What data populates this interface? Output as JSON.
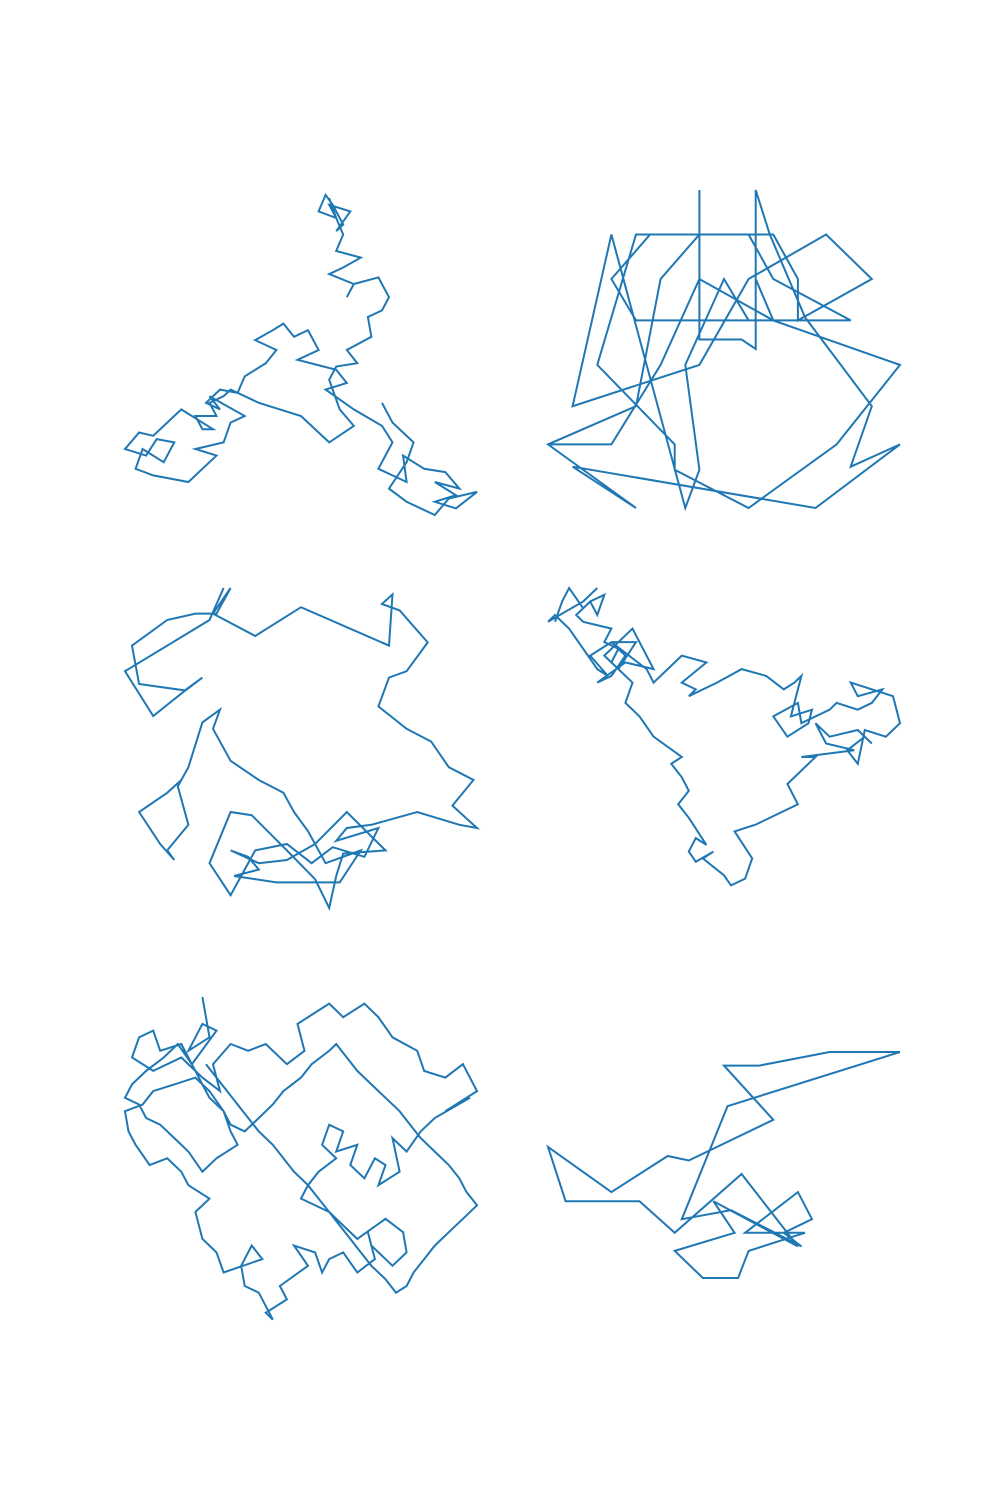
{
  "figure": {
    "line_color": "#1f77b4",
    "background": "#ffffff",
    "axes_visible": false
  },
  "chart_data": [
    {
      "type": "line",
      "name_hint": "panel-1",
      "xlim": [
        0,
        100
      ],
      "ylim": [
        0,
        100
      ],
      "x": [
        58,
        60,
        58,
        64,
        60,
        62,
        59,
        57,
        55,
        60,
        62,
        60,
        67,
        62,
        58,
        65,
        63,
        65,
        72,
        75,
        73,
        69,
        70,
        63,
        66,
        60,
        58,
        61,
        65,
        58,
        55,
        50,
        44,
        38,
        30,
        28,
        24,
        26,
        20,
        22,
        25,
        16,
        12,
        8,
        4,
        0,
        6,
        9,
        14,
        11,
        5,
        3,
        8,
        18,
        22,
        26,
        20,
        28,
        30,
        34,
        24,
        27,
        23,
        27,
        32,
        34,
        40,
        43,
        37,
        42,
        45,
        48,
        52,
        55,
        49,
        60,
        63,
        57,
        65,
        73,
        76,
        72,
        80,
        79,
        85,
        91,
        95,
        88,
        94,
        88,
        94,
        100,
        92,
        88,
        80,
        75,
        80,
        82,
        76,
        73
      ],
      "y": [
        96,
        90,
        94,
        92,
        86,
        88,
        94,
        97,
        92,
        90,
        85,
        80,
        78,
        75,
        73,
        70,
        66,
        70,
        72,
        66,
        62,
        60,
        54,
        50,
        46,
        45,
        41,
        32,
        27,
        22,
        25,
        30,
        32,
        34,
        38,
        36,
        34,
        30,
        30,
        26,
        26,
        32,
        28,
        24,
        25,
        20,
        18,
        23,
        22,
        16,
        20,
        14,
        12,
        10,
        14,
        18,
        20,
        22,
        28,
        30,
        36,
        32,
        34,
        38,
        37,
        42,
        46,
        50,
        53,
        56,
        58,
        54,
        56,
        50,
        47,
        44,
        40,
        38,
        32,
        27,
        22,
        14,
        10,
        18,
        14,
        13,
        8,
        10,
        6,
        4,
        2,
        7,
        5,
        0,
        4,
        8,
        16,
        22,
        28,
        34
      ]
    },
    {
      "type": "line",
      "name_hint": "panel-2",
      "xlim": [
        0,
        100
      ],
      "ylim": [
        0,
        100
      ],
      "x": [
        43,
        43,
        50,
        55,
        59,
        59,
        63,
        73,
        92,
        86,
        100,
        76,
        7,
        25,
        0,
        25,
        32,
        43,
        57,
        64,
        86,
        57,
        50,
        39,
        43,
        39,
        28,
        18,
        7,
        43,
        57,
        79,
        92,
        71,
        71,
        64,
        29,
        18,
        25,
        64,
        59,
        59,
        25,
        14,
        36,
        36,
        57,
        82,
        100,
        64,
        43,
        32,
        18,
        0
      ],
      "y": [
        100,
        53,
        53,
        53,
        50,
        100,
        86,
        60,
        32,
        13,
        20,
        0,
        13,
        0,
        20,
        32,
        72,
        86,
        86,
        72,
        59,
        59,
        72,
        45,
        12,
        0,
        45,
        86,
        32,
        45,
        72,
        86,
        72,
        59,
        72,
        86,
        86,
        72,
        59,
        59,
        72,
        86,
        86,
        45,
        20,
        12,
        0,
        20,
        45,
        59,
        72,
        45,
        20,
        20
      ]
    },
    {
      "type": "line",
      "name_hint": "panel-3",
      "xlim": [
        0,
        100
      ],
      "ylim": [
        0,
        100
      ],
      "x": [
        28,
        24,
        0,
        8,
        16,
        22,
        17,
        4,
        2,
        12,
        20,
        26,
        30,
        25,
        37,
        50,
        75,
        76,
        73,
        78,
        86,
        80,
        75,
        72,
        80,
        87,
        92,
        99,
        93,
        100,
        95,
        83,
        70,
        63,
        60,
        72,
        68,
        59,
        53,
        46,
        37,
        30,
        24,
        30,
        36,
        46,
        54,
        58,
        60,
        62,
        74,
        63,
        54,
        46,
        38,
        30,
        35,
        38,
        31,
        43,
        61,
        67,
        57,
        52,
        48,
        45,
        38,
        30,
        25,
        27,
        22,
        18,
        15,
        18,
        12,
        14,
        10,
        4,
        12,
        16
      ],
      "y": [
        100,
        90,
        74,
        60,
        67,
        72,
        68,
        70,
        82,
        90,
        92,
        92,
        100,
        92,
        85,
        94,
        82,
        98,
        95,
        93,
        83,
        74,
        72,
        63,
        56,
        52,
        44,
        40,
        32,
        25,
        26,
        30,
        26,
        25,
        21,
        25,
        16,
        19,
        14,
        20,
        18,
        4,
        14,
        30,
        29,
        18,
        9,
        0,
        10,
        17,
        18,
        30,
        20,
        15,
        14,
        18,
        16,
        12,
        10,
        8,
        8,
        18,
        14,
        24,
        30,
        36,
        40,
        46,
        56,
        62,
        58,
        44,
        38,
        26,
        18,
        15,
        20,
        30,
        36,
        40
      ]
    },
    {
      "type": "line",
      "name_hint": "panel-4",
      "xlim": [
        0,
        100
      ],
      "ylim": [
        0,
        100
      ],
      "x": [
        14,
        10,
        0,
        2,
        6,
        14,
        17,
        12,
        18,
        25,
        20,
        16,
        24,
        27,
        30,
        22,
        14,
        18,
        22,
        18,
        28,
        30,
        38,
        45,
        38,
        42,
        40,
        48,
        55,
        62,
        67,
        70,
        72,
        69,
        75,
        74,
        68,
        64,
        71,
        72,
        80,
        82,
        88,
        92,
        95,
        88,
        86,
        98,
        100,
        96,
        90,
        88,
        85,
        90,
        92,
        88,
        80,
        76,
        79,
        87,
        72,
        76,
        68,
        71,
        59,
        53,
        58,
        56,
        52,
        50,
        44,
        47,
        42,
        40,
        42,
        45,
        40,
        37,
        40,
        38,
        35,
        38,
        30,
        26,
        22,
        24,
        18,
        20,
        16,
        18,
        10,
        8,
        12,
        16,
        14,
        12,
        10,
        6,
        4,
        2
      ],
      "y": [
        100,
        96,
        90,
        92,
        88,
        76,
        74,
        80,
        84,
        84,
        76,
        80,
        88,
        82,
        76,
        78,
        72,
        74,
        80,
        84,
        76,
        72,
        80,
        78,
        72,
        70,
        68,
        72,
        76,
        74,
        70,
        72,
        74,
        62,
        64,
        60,
        56,
        62,
        66,
        60,
        64,
        66,
        64,
        66,
        70,
        68,
        72,
        68,
        60,
        56,
        58,
        48,
        52,
        56,
        54,
        58,
        56,
        60,
        54,
        52,
        50,
        50,
        42,
        36,
        30,
        28,
        20,
        14,
        12,
        15,
        20,
        22,
        19,
        22,
        26,
        24,
        32,
        36,
        40,
        44,
        48,
        50,
        56,
        62,
        66,
        72,
        78,
        82,
        84,
        88,
        90,
        92,
        96,
        98,
        92,
        96,
        94,
        100,
        96,
        90
      ]
    },
    {
      "type": "line",
      "name_hint": "panel-5",
      "xlim": [
        0,
        100
      ],
      "ylim": [
        0,
        100
      ],
      "x": [
        22,
        24,
        18,
        22,
        26,
        19,
        16,
        10,
        8,
        4,
        2,
        8,
        16,
        22,
        27,
        25,
        30,
        35,
        40,
        46,
        51,
        49,
        55,
        58,
        60,
        62,
        68,
        72,
        76,
        83,
        85,
        91,
        96,
        100,
        91,
        98,
        88,
        84,
        80,
        76,
        78,
        72,
        74,
        71,
        68,
        64,
        66,
        60,
        62,
        58,
        56,
        60,
        55,
        52,
        50,
        58,
        62,
        66,
        74,
        79,
        80,
        76,
        70,
        69,
        71,
        66,
        62,
        58,
        56,
        54,
        48,
        52,
        44,
        46,
        40,
        42,
        38,
        34,
        33,
        36,
        39,
        28,
        26,
        22,
        20,
        24,
        18,
        16,
        12,
        7,
        3,
        1,
        0,
        5,
        8,
        14,
        20,
        24,
        28,
        30,
        32,
        26,
        22,
        18,
        14,
        10,
        6,
        4,
        0,
        2,
        6,
        11,
        15,
        19,
        22,
        24,
        28,
        30,
        34,
        38,
        42,
        45,
        50,
        53,
        58,
        60,
        63,
        66,
        70,
        74,
        78,
        81,
        84,
        88,
        92,
        95,
        97,
        100,
        96,
        92,
        88,
        85,
        82,
        80,
        77,
        74,
        70,
        67,
        64,
        61,
        58,
        55,
        52,
        48,
        45,
        42,
        38,
        35,
        32,
        29,
        26,
        23
      ],
      "y": [
        100,
        88,
        84,
        92,
        90,
        80,
        86,
        84,
        90,
        88,
        82,
        78,
        82,
        76,
        72,
        80,
        86,
        84,
        86,
        80,
        84,
        92,
        96,
        98,
        96,
        94,
        98,
        94,
        88,
        84,
        78,
        76,
        80,
        72,
        66,
        70,
        64,
        60,
        54,
        58,
        48,
        44,
        50,
        52,
        46,
        50,
        56,
        54,
        60,
        62,
        56,
        52,
        48,
        44,
        40,
        36,
        32,
        28,
        34,
        30,
        24,
        20,
        26,
        30,
        22,
        18,
        24,
        22,
        18,
        24,
        26,
        20,
        14,
        10,
        6,
        4,
        12,
        14,
        20,
        26,
        22,
        18,
        24,
        28,
        36,
        40,
        44,
        48,
        52,
        50,
        56,
        60,
        66,
        68,
        72,
        74,
        76,
        72,
        66,
        60,
        56,
        52,
        48,
        54,
        58,
        62,
        64,
        68,
        70,
        74,
        78,
        82,
        86,
        80,
        74,
        70,
        66,
        62,
        60,
        64,
        68,
        72,
        76,
        80,
        84,
        86,
        82,
        78,
        74,
        70,
        66,
        62,
        58,
        54,
        50,
        46,
        42,
        38,
        34,
        30,
        26,
        22,
        18,
        14,
        12,
        16,
        20,
        24,
        28,
        32,
        36,
        40,
        44,
        48,
        52,
        56,
        60,
        64,
        68,
        72,
        76,
        80
      ]
    },
    {
      "type": "line",
      "name_hint": "panel-6",
      "xlim": [
        0,
        100
      ],
      "ylim": [
        0,
        100
      ],
      "x": [
        100,
        80,
        60,
        50,
        64,
        40,
        34,
        18,
        0,
        5,
        26,
        36,
        55,
        71,
        47,
        53,
        36,
        44,
        54,
        57,
        73,
        56,
        71,
        75,
        67,
        72,
        52,
        38,
        51,
        100
      ],
      "y": [
        100,
        100,
        94,
        94,
        70,
        52,
        54,
        38,
        58,
        34,
        34,
        20,
        46,
        14,
        34,
        20,
        12,
        0,
        0,
        12,
        20,
        20,
        38,
        26,
        20,
        14,
        30,
        26,
        76,
        100
      ]
    }
  ]
}
